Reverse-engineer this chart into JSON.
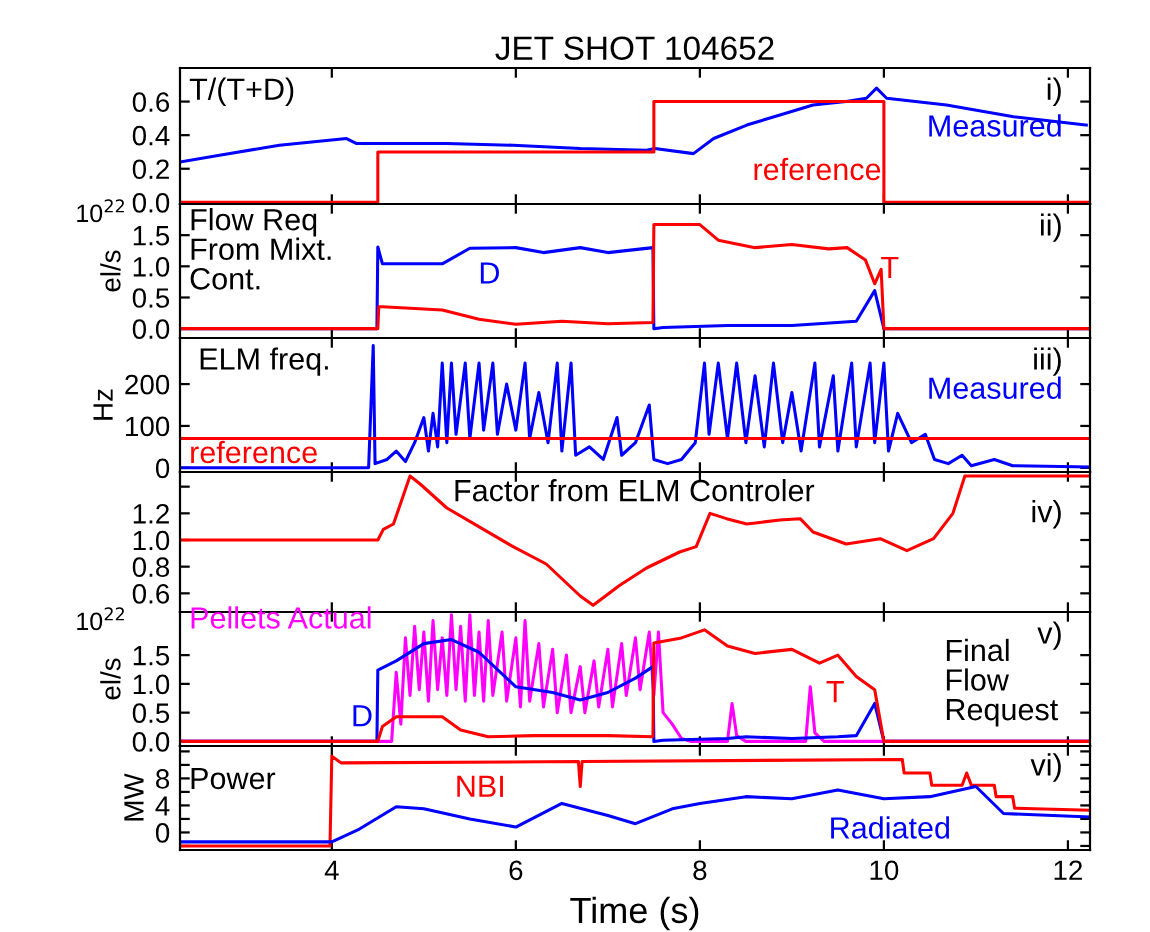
{
  "chart_data": [
    {
      "type": "line",
      "title": "JET SHOT 104652",
      "xlim": [
        2.35,
        12.24
      ],
      "xticks": [
        4,
        6,
        8,
        10,
        12
      ],
      "ylim": [
        -0.01,
        0.8
      ],
      "yticks": [
        {
          "value": 0,
          "label": "0.0"
        },
        0.2,
        0.4,
        0.6
      ],
      "tick_labels": "y",
      "annotations": [
        "T/(T+D)",
        "i)"
      ],
      "series": [
        {
          "name": "Measured",
          "color": "#0000ff",
          "x": [
            2.35,
            2.78,
            3.43,
            4.16,
            4.27,
            5.25,
            5.97,
            6.7,
            7.42,
            7.51,
            7.93,
            8.15,
            8.51,
            8.87,
            9.23,
            9.59,
            9.81,
            9.92,
            10.03,
            10.68,
            11.41,
            12.2
          ],
          "values": [
            0.24,
            0.28,
            0.34,
            0.38,
            0.35,
            0.35,
            0.34,
            0.32,
            0.31,
            0.32,
            0.29,
            0.38,
            0.46,
            0.52,
            0.58,
            0.6,
            0.62,
            0.68,
            0.62,
            0.58,
            0.51,
            0.46
          ]
        },
        {
          "name": "reference",
          "type": "step",
          "color": "#ff0000",
          "x": [
            2.35,
            4.5,
            7.5,
            10.0,
            12.24
          ],
          "values": [
            0,
            0.3,
            0.6,
            0,
            0
          ]
        }
      ]
    },
    {
      "type": "line",
      "xlim": [
        2.35,
        12.24
      ],
      "xticks": [
        4,
        6,
        8,
        10,
        12
      ],
      "ylim": [
        -0.15,
        2.0
      ],
      "yticks": [
        {
          "value": 0,
          "label": "0.0"
        },
        0.5,
        {
          "value": 1,
          "label": "1.0"
        },
        1.5
      ],
      "tick_labels": "y",
      "ylabel": "el/s",
      "annotations": [
        "Flow Req\nFrom Mixt.\nCont.",
        "ii)",
        "10$^{22}$"
      ],
      "series": [
        {
          "name": "D",
          "color": "#0000ff",
          "x": [
            2.35,
            4.49,
            4.5,
            4.55,
            5.2,
            5.5,
            6.0,
            6.3,
            6.7,
            7.0,
            7.49,
            7.5,
            7.6,
            8.3,
            9.0,
            9.7,
            9.9,
            10.0,
            12.24
          ],
          "values": [
            0,
            0,
            1.31,
            1.04,
            1.04,
            1.29,
            1.3,
            1.22,
            1.3,
            1.22,
            1.3,
            0,
            0.02,
            0.05,
            0.05,
            0.12,
            0.61,
            0,
            0
          ]
        },
        {
          "name": "T",
          "color": "#ff0000",
          "x": [
            2.35,
            4.5,
            4.51,
            4.55,
            5.2,
            5.6,
            6.0,
            6.5,
            7.0,
            7.49,
            7.5,
            8.0,
            8.2,
            8.6,
            9.0,
            9.4,
            9.6,
            9.8,
            9.9,
            9.97,
            10.0,
            12.24
          ],
          "values": [
            0,
            0,
            0.35,
            0.35,
            0.3,
            0.15,
            0.07,
            0.12,
            0.08,
            0.1,
            1.67,
            1.67,
            1.42,
            1.3,
            1.35,
            1.28,
            1.3,
            1.1,
            0.72,
            0.95,
            0,
            0
          ]
        }
      ]
    },
    {
      "type": "line",
      "xlim": [
        2.35,
        12.24
      ],
      "xticks": [
        4,
        6,
        8,
        10,
        12
      ],
      "ylim": [
        -10,
        310
      ],
      "yticks": [
        0,
        100,
        200
      ],
      "tick_labels": "y",
      "ylabel": "Hz",
      "annotations": [
        "ELM freq.",
        "iii)"
      ],
      "series": [
        {
          "name": "Measured",
          "color": "#0000ff",
          "x": [
            2.35,
            4.4,
            4.45,
            4.47,
            4.6,
            4.7,
            4.8,
            4.9,
            5.0,
            5.05,
            5.1,
            5.15,
            5.2,
            5.25,
            5.3,
            5.35,
            5.45,
            5.5,
            5.6,
            5.65,
            5.75,
            5.8,
            5.9,
            6.0,
            6.1,
            6.15,
            6.25,
            6.35,
            6.45,
            6.5,
            6.6,
            6.65,
            6.8,
            6.95,
            7.1,
            7.15,
            7.3,
            7.45,
            7.5,
            7.65,
            7.8,
            7.95,
            8.05,
            8.1,
            8.2,
            8.3,
            8.4,
            8.5,
            8.6,
            8.7,
            8.8,
            8.9,
            9.0,
            9.1,
            9.25,
            9.3,
            9.45,
            9.5,
            9.65,
            9.7,
            9.85,
            9.9,
            10.0,
            10.05,
            10.15,
            10.3,
            10.45,
            10.55,
            10.7,
            10.85,
            10.95,
            11.2,
            11.4,
            12.24
          ],
          "values": [
            0,
            0,
            292,
            10,
            20,
            40,
            15,
            60,
            120,
            40,
            130,
            50,
            250,
            60,
            250,
            80,
            250,
            70,
            250,
            90,
            250,
            80,
            200,
            90,
            250,
            70,
            180,
            60,
            250,
            40,
            250,
            30,
            50,
            20,
            120,
            30,
            60,
            150,
            20,
            10,
            20,
            60,
            250,
            80,
            250,
            70,
            250,
            60,
            220,
            50,
            250,
            60,
            180,
            40,
            250,
            50,
            220,
            40,
            250,
            50,
            250,
            60,
            250,
            40,
            130,
            60,
            80,
            20,
            10,
            30,
            5,
            20,
            5,
            2
          ]
        },
        {
          "name": "reference",
          "color": "#ff0000",
          "x": [
            2.35,
            12.24
          ],
          "values": [
            70,
            70
          ]
        }
      ]
    },
    {
      "type": "line",
      "xlim": [
        2.35,
        12.24
      ],
      "xticks": [
        4,
        6,
        8,
        10,
        12
      ],
      "ylim": [
        0.46,
        1.51
      ],
      "yticks": [
        0.6,
        0.8,
        {
          "value": 1,
          "label": "1.0"
        },
        1.2,
        {
          "value": 1.4,
          "label": null
        }
      ],
      "tick_labels": "y",
      "annotations": [
        "Factor from ELM Controler",
        "iv)"
      ],
      "series": [
        {
          "color": "#ff0000",
          "x": [
            2.35,
            4.5,
            4.56,
            4.67,
            4.85,
            4.96,
            5.25,
            5.97,
            6.33,
            6.7,
            6.84,
            7.13,
            7.42,
            7.78,
            7.96,
            8.11,
            8.29,
            8.51,
            8.87,
            9.09,
            9.23,
            9.59,
            9.96,
            10.25,
            10.54,
            10.75,
            10.88,
            12.24
          ],
          "values": [
            1.0,
            1.0,
            1.08,
            1.12,
            1.48,
            1.42,
            1.24,
            0.95,
            0.82,
            0.58,
            0.51,
            0.66,
            0.79,
            0.91,
            0.95,
            1.2,
            1.16,
            1.12,
            1.15,
            1.16,
            1.06,
            0.97,
            1.01,
            0.92,
            1.01,
            1.2,
            1.48,
            1.48
          ]
        }
      ]
    },
    {
      "type": "line",
      "xlim": [
        2.35,
        12.24
      ],
      "xticks": [
        4,
        6,
        8,
        10,
        12
      ],
      "ylim": [
        -0.08,
        2.25
      ],
      "yticks": [
        {
          "value": 0,
          "label": "0.0"
        },
        0.5,
        {
          "value": 1,
          "label": "1.0"
        },
        1.5
      ],
      "tick_labels": "y",
      "ylabel": "el/s",
      "annotations": [
        "Final\nFlow\nRequest",
        "v)",
        "10$^{22}$"
      ],
      "series": [
        {
          "name": "Pellets Actual",
          "color": "#ff00ff",
          "x": [
            2.35,
            4.65,
            4.7,
            4.75,
            4.8,
            4.85,
            4.9,
            4.95,
            5.0,
            5.05,
            5.1,
            5.15,
            5.2,
            5.25,
            5.3,
            5.35,
            5.4,
            5.45,
            5.5,
            5.55,
            5.6,
            5.65,
            5.7,
            5.75,
            5.85,
            5.9,
            6.0,
            6.05,
            6.1,
            6.15,
            6.25,
            6.3,
            6.4,
            6.45,
            6.55,
            6.6,
            6.7,
            6.75,
            6.85,
            6.9,
            7.0,
            7.05,
            7.15,
            7.2,
            7.3,
            7.35,
            7.45,
            7.5,
            7.55,
            7.6,
            7.7,
            7.8,
            7.9,
            8.3,
            8.35,
            8.4,
            8.5,
            9.15,
            9.2,
            9.25,
            9.35,
            12.24
          ],
          "values": [
            0,
            0,
            1.2,
            0.3,
            1.8,
            0.8,
            2.0,
            0.9,
            1.9,
            0.7,
            2.1,
            0.9,
            1.8,
            0.8,
            2.2,
            0.9,
            2.0,
            0.7,
            2.2,
            0.8,
            1.9,
            0.7,
            2.1,
            0.8,
            1.9,
            0.7,
            1.8,
            0.6,
            2.1,
            0.7,
            1.7,
            0.6,
            1.6,
            0.5,
            1.5,
            0.5,
            1.3,
            0.5,
            1.4,
            0.6,
            1.6,
            0.6,
            1.7,
            0.8,
            1.8,
            0.9,
            1.9,
            0.8,
            1.9,
            0.5,
            0.3,
            0.05,
            0,
            0,
            0.66,
            0.1,
            0,
            0,
            0.95,
            0.15,
            0,
            0
          ]
        },
        {
          "name": "D",
          "color": "#0000ff",
          "x": [
            2.35,
            4.49,
            4.5,
            4.7,
            5.0,
            5.3,
            5.6,
            6.0,
            6.4,
            6.7,
            7.0,
            7.3,
            7.49,
            7.5,
            7.6,
            8.3,
            8.5,
            9.0,
            9.5,
            9.7,
            9.9,
            10.0,
            12.24
          ],
          "values": [
            0,
            0,
            1.24,
            1.4,
            1.7,
            1.77,
            1.55,
            0.95,
            0.85,
            0.72,
            0.85,
            1.1,
            1.3,
            0,
            0.02,
            0.05,
            0.08,
            0.05,
            0.08,
            0.1,
            0.66,
            0,
            0
          ]
        },
        {
          "name": "T",
          "color": "#ff0000",
          "x": [
            2.35,
            4.5,
            4.55,
            4.7,
            5.2,
            5.4,
            5.7,
            6.2,
            7.0,
            7.49,
            7.5,
            7.8,
            8.05,
            8.3,
            8.6,
            9.0,
            9.3,
            9.5,
            9.7,
            9.9,
            10.0,
            12.24
          ],
          "values": [
            0,
            0,
            0.26,
            0.43,
            0.43,
            0.2,
            0.08,
            0.1,
            0.1,
            0.08,
            1.71,
            1.8,
            1.94,
            1.66,
            1.53,
            1.6,
            1.36,
            1.5,
            1.13,
            0.9,
            0,
            0
          ]
        }
      ]
    },
    {
      "type": "line",
      "xlim": [
        2.35,
        12.24
      ],
      "xticks": [
        4,
        6,
        8,
        10,
        12
      ],
      "ylim": [
        -2.6,
        12.8
      ],
      "yticks": [
        {
          "value": -2,
          "label": null
        },
        0,
        {
          "value": 2,
          "label": null
        },
        4,
        {
          "value": 6,
          "label": null
        },
        8,
        {
          "value": 10,
          "label": null
        },
        {
          "value": 12,
          "label": null
        }
      ],
      "ylabel": "MW",
      "xlabel": "Time (s)",
      "annotations": [
        "Power",
        "vi)"
      ],
      "series": [
        {
          "name": "NBI",
          "color": "#ff0000",
          "x": [
            2.35,
            3.98,
            4.0,
            4.1,
            6.68,
            6.7,
            6.72,
            10.2,
            10.22,
            10.5,
            10.52,
            10.85,
            10.9,
            10.95,
            11.2,
            11.22,
            11.4,
            11.42,
            12.24
          ],
          "values": [
            -2,
            -2,
            11.3,
            10.3,
            10.5,
            6.8,
            10.5,
            10.8,
            8.8,
            8.8,
            7.0,
            7.0,
            8.8,
            7.0,
            7.0,
            5.3,
            5.3,
            3.6,
            3.3
          ]
        },
        {
          "name": "Radiated",
          "color": "#0000ff",
          "x": [
            2.35,
            4.0,
            4.3,
            4.7,
            5.0,
            5.5,
            6.0,
            6.5,
            7.0,
            7.3,
            7.7,
            8.0,
            8.5,
            9.0,
            9.5,
            10.0,
            10.5,
            11.0,
            11.3,
            12.24
          ],
          "values": [
            -1.4,
            -1.4,
            0.5,
            3.8,
            3.5,
            2.0,
            0.8,
            4.3,
            2.5,
            1.3,
            3.5,
            4.3,
            5.3,
            5.0,
            6.3,
            5.0,
            5.3,
            6.8,
            2.8,
            2.3
          ]
        }
      ]
    }
  ]
}
